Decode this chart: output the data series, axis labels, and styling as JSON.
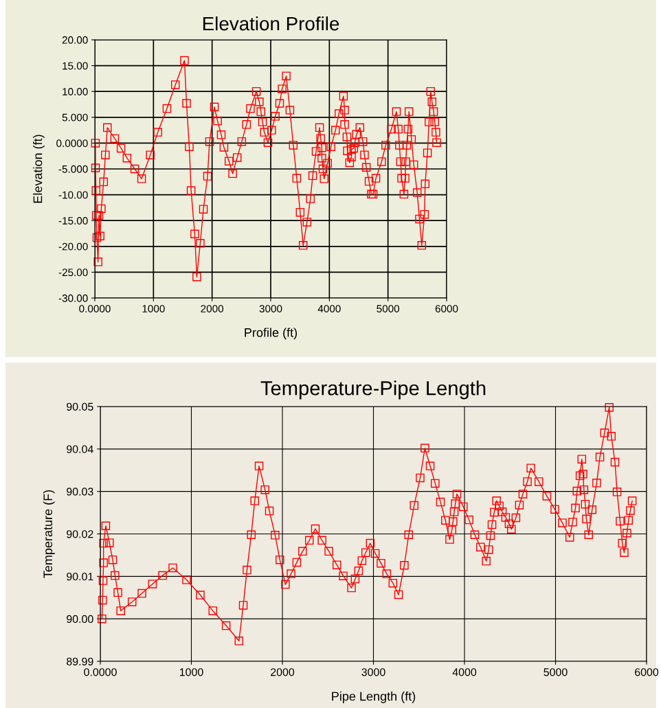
{
  "chart_data": [
    {
      "type": "line",
      "title": "Elevation Profile",
      "xlabel": "Profile (ft)",
      "ylabel": "Elevation (ft)",
      "marker": "square",
      "line_style": "solid",
      "grid": true,
      "x": [
        10,
        12,
        20,
        25,
        35,
        55,
        70,
        90,
        110,
        150,
        180,
        214,
        339,
        447,
        549,
        681,
        798,
        946,
        1074,
        1230,
        1374,
        1529,
        1564,
        1611,
        1642,
        1704,
        1739,
        1798,
        1852,
        1922,
        1957,
        2039,
        2093,
        2156,
        2202,
        2288,
        2350,
        2428,
        2506,
        2588,
        2654,
        2755,
        2805,
        2833,
        2860,
        2891,
        2953,
        3016,
        3078,
        3152,
        3195,
        3265,
        3327,
        3385,
        3444,
        3502,
        3553,
        3619,
        3677,
        3716,
        3774,
        3833,
        3852,
        3872,
        3872,
        3891,
        3911,
        3969,
        4027,
        4105,
        4163,
        4241,
        4261,
        4261,
        4300,
        4307,
        4346,
        4377,
        4377,
        4416,
        4436,
        4463,
        4521,
        4572,
        4599,
        4630,
        4677,
        4716,
        4747,
        4794,
        4891,
        4961,
        5058,
        5144,
        5175,
        5195,
        5214,
        5233,
        5272,
        5292,
        5304,
        5319,
        5342,
        5358,
        5401,
        5440,
        5498,
        5537,
        5576,
        5623,
        5634,
        5673,
        5700,
        5728,
        5751,
        5778,
        5798,
        5817,
        5829
      ],
      "series": [
        {
          "color": "#ff0000",
          "values": [
            0,
            -4.8,
            -9.2,
            -14,
            -18.3,
            -23,
            -14,
            -18,
            -12.7,
            -7.5,
            -2.3,
            3.0,
            0.9,
            -1,
            -2.9,
            -5,
            -6.9,
            -2.3,
            2.1,
            6.7,
            11.3,
            16,
            7.7,
            -0.7,
            -9.2,
            -17.6,
            -25.9,
            -19.4,
            -12.8,
            -6.4,
            0.3,
            7,
            4.3,
            1.6,
            -0.8,
            -3.5,
            -5.9,
            -2.8,
            0.3,
            3.6,
            6.7,
            10,
            8,
            6.1,
            4.1,
            2.1,
            0.1,
            2.5,
            5.2,
            7.7,
            10.5,
            13,
            6.4,
            -0.4,
            -6.8,
            -13.4,
            -19.8,
            -15.3,
            -10.8,
            -6.3,
            -1.6,
            3,
            0.9,
            -0.9,
            -2.9,
            -5,
            -6.9,
            -3.9,
            -0.7,
            2.5,
            5.7,
            9.1,
            6.4,
            3.6,
            1.2,
            -1.5,
            -3.8,
            -2.7,
            -1.2,
            -1,
            0.1,
            1.7,
            3,
            0.3,
            -2.3,
            -4.7,
            -7.4,
            -9.9,
            -9.9,
            -6.8,
            -3.6,
            -0.4,
            2.7,
            6.1,
            2.7,
            -0.4,
            -3.6,
            -6.8,
            -9.9,
            -6.8,
            -3.6,
            -0.4,
            2.7,
            6.1,
            0.7,
            -4.2,
            -9.6,
            -14.7,
            -19.8,
            -13.8,
            -7.9,
            -1.9,
            4.1,
            10,
            8,
            6.1,
            4.1,
            2.1,
            0.1
          ]
        }
      ],
      "xlim": [
        0,
        6000
      ],
      "ylim": [
        -30,
        20
      ],
      "xticks": [
        {
          "value": 0,
          "label": "0.0000"
        },
        1000,
        2000,
        3000,
        4000,
        5000,
        6000
      ],
      "yticks": [
        {
          "value": -30,
          "label": "-30.00"
        },
        {
          "value": -25,
          "label": "-25.00"
        },
        {
          "value": -20,
          "label": "-20.00"
        },
        {
          "value": -15,
          "label": "-15.00"
        },
        {
          "value": -10,
          "label": "-10.00"
        },
        {
          "value": -5,
          "label": "-5.000"
        },
        {
          "value": 0,
          "label": "0.0000"
        },
        {
          "value": 5,
          "label": "5.000"
        },
        {
          "value": 10,
          "label": "10.00"
        },
        {
          "value": 15,
          "label": "15.00"
        },
        {
          "value": 20,
          "label": "20.00"
        }
      ]
    },
    {
      "type": "line",
      "title": "Temperature-Pipe Length",
      "xlabel": "Pipe Length (ft)",
      "ylabel": "Temperature (F)",
      "marker": "square",
      "line_style": "solid",
      "grid": true,
      "x": [
        18,
        25,
        30,
        35,
        35,
        60,
        100,
        136,
        161,
        193,
        224,
        349,
        457,
        573,
        683,
        796,
        947,
        1098,
        1236,
        1382,
        1523,
        1570,
        1611,
        1658,
        1696,
        1744,
        1809,
        1857,
        1920,
        1972,
        2033,
        2095,
        2158,
        2221,
        2296,
        2362,
        2435,
        2510,
        2598,
        2668,
        2759,
        2799,
        2837,
        2874,
        2915,
        2965,
        3020,
        3083,
        3146,
        3214,
        3276,
        3339,
        3387,
        3447,
        3513,
        3565,
        3623,
        3678,
        3736,
        3791,
        3837,
        3862,
        3874,
        3887,
        3899,
        3917,
        3987,
        4050,
        4113,
        4176,
        4239,
        4266,
        4286,
        4302,
        4327,
        4352,
        4382,
        4415,
        4452,
        4490,
        4515,
        4565,
        4603,
        4641,
        4691,
        4729,
        4817,
        4905,
        4992,
        5075,
        5156,
        5188,
        5219,
        5236,
        5269,
        5289,
        5302,
        5312,
        5327,
        5339,
        5364,
        5402,
        5452,
        5487,
        5538,
        5590,
        5613,
        5653,
        5676,
        5709,
        5734,
        5754,
        5784,
        5802,
        5822,
        5842
      ],
      "series": [
        {
          "color": "#ff0000",
          "values": [
            90.0,
            90.0044,
            90.009,
            90.0132,
            90.0178,
            90.0219,
            90.0179,
            90.0139,
            90.0102,
            90.0062,
            90.0019,
            90.004,
            90.006,
            90.0082,
            90.0102,
            90.012,
            90.0092,
            90.0056,
            90.0019,
            89.9984,
            89.9948,
            90.0032,
            90.0115,
            90.0198,
            90.0278,
            90.036,
            90.0304,
            90.0254,
            90.0197,
            90.0139,
            90.0081,
            90.0106,
            90.0133,
            90.0159,
            90.0185,
            90.0212,
            90.0185,
            90.0159,
            90.0127,
            90.0101,
            90.0073,
            90.0094,
            90.0113,
            90.0137,
            90.0156,
            90.0178,
            90.0154,
            90.0131,
            90.0106,
            90.0084,
            90.0057,
            90.0126,
            90.0198,
            90.0267,
            90.0332,
            90.0402,
            90.036,
            90.0319,
            90.0275,
            90.0232,
            90.0187,
            90.0209,
            90.0229,
            90.0252,
            90.0271,
            90.0294,
            90.0264,
            90.0233,
            90.0198,
            90.0169,
            90.0136,
            90.0163,
            90.0196,
            90.0222,
            90.0251,
            90.0278,
            90.0266,
            90.0252,
            90.0239,
            90.0224,
            90.0211,
            90.0238,
            90.0268,
            90.0294,
            90.0323,
            90.0355,
            90.0323,
            90.0289,
            90.0258,
            90.0226,
            90.0192,
            90.0228,
            90.0261,
            90.0301,
            90.0337,
            90.0376,
            90.0341,
            90.0304,
            90.027,
            90.0235,
            90.0198,
            90.0257,
            90.032,
            90.0381,
            90.0438,
            90.0498,
            90.043,
            90.0369,
            90.0299,
            90.023,
            90.0178,
            90.0156,
            90.0202,
            90.0232,
            90.0255,
            90.0278
          ]
        }
      ],
      "xlim": [
        0,
        6000
      ],
      "ylim": [
        89.99,
        90.05
      ],
      "xticks": [
        {
          "value": 0,
          "label": "0.0000"
        },
        1000,
        2000,
        3000,
        4000,
        5000,
        6000
      ],
      "yticks": [
        {
          "value": 89.99,
          "label": "89.99"
        },
        {
          "value": 90.0,
          "label": "90.00"
        },
        {
          "value": 90.01,
          "label": "90.01"
        },
        {
          "value": 90.02,
          "label": "90.02"
        },
        {
          "value": 90.03,
          "label": "90.03"
        },
        {
          "value": 90.04,
          "label": "90.04"
        },
        {
          "value": 90.05,
          "label": "90.05"
        }
      ]
    }
  ]
}
